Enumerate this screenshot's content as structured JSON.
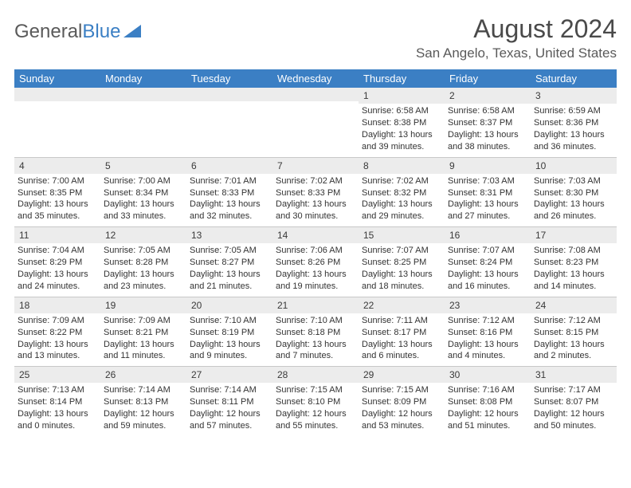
{
  "logo": {
    "text_gray": "General",
    "text_blue": "Blue"
  },
  "title": "August 2024",
  "location": "San Angelo, Texas, United States",
  "colors": {
    "header_bg": "#3b7fc4",
    "header_text": "#ffffff",
    "strip_bg": "#ececec",
    "row_border": "#c8c8c8",
    "body_text": "#333333",
    "title_text": "#4a4a4a",
    "location_text": "#5a5a5a"
  },
  "weekdays": [
    "Sunday",
    "Monday",
    "Tuesday",
    "Wednesday",
    "Thursday",
    "Friday",
    "Saturday"
  ],
  "first_weekday_index": 4,
  "days": [
    {
      "n": 1,
      "sunrise": "6:58 AM",
      "sunset": "8:38 PM",
      "daylight": "13 hours and 39 minutes."
    },
    {
      "n": 2,
      "sunrise": "6:58 AM",
      "sunset": "8:37 PM",
      "daylight": "13 hours and 38 minutes."
    },
    {
      "n": 3,
      "sunrise": "6:59 AM",
      "sunset": "8:36 PM",
      "daylight": "13 hours and 36 minutes."
    },
    {
      "n": 4,
      "sunrise": "7:00 AM",
      "sunset": "8:35 PM",
      "daylight": "13 hours and 35 minutes."
    },
    {
      "n": 5,
      "sunrise": "7:00 AM",
      "sunset": "8:34 PM",
      "daylight": "13 hours and 33 minutes."
    },
    {
      "n": 6,
      "sunrise": "7:01 AM",
      "sunset": "8:33 PM",
      "daylight": "13 hours and 32 minutes."
    },
    {
      "n": 7,
      "sunrise": "7:02 AM",
      "sunset": "8:33 PM",
      "daylight": "13 hours and 30 minutes."
    },
    {
      "n": 8,
      "sunrise": "7:02 AM",
      "sunset": "8:32 PM",
      "daylight": "13 hours and 29 minutes."
    },
    {
      "n": 9,
      "sunrise": "7:03 AM",
      "sunset": "8:31 PM",
      "daylight": "13 hours and 27 minutes."
    },
    {
      "n": 10,
      "sunrise": "7:03 AM",
      "sunset": "8:30 PM",
      "daylight": "13 hours and 26 minutes."
    },
    {
      "n": 11,
      "sunrise": "7:04 AM",
      "sunset": "8:29 PM",
      "daylight": "13 hours and 24 minutes."
    },
    {
      "n": 12,
      "sunrise": "7:05 AM",
      "sunset": "8:28 PM",
      "daylight": "13 hours and 23 minutes."
    },
    {
      "n": 13,
      "sunrise": "7:05 AM",
      "sunset": "8:27 PM",
      "daylight": "13 hours and 21 minutes."
    },
    {
      "n": 14,
      "sunrise": "7:06 AM",
      "sunset": "8:26 PM",
      "daylight": "13 hours and 19 minutes."
    },
    {
      "n": 15,
      "sunrise": "7:07 AM",
      "sunset": "8:25 PM",
      "daylight": "13 hours and 18 minutes."
    },
    {
      "n": 16,
      "sunrise": "7:07 AM",
      "sunset": "8:24 PM",
      "daylight": "13 hours and 16 minutes."
    },
    {
      "n": 17,
      "sunrise": "7:08 AM",
      "sunset": "8:23 PM",
      "daylight": "13 hours and 14 minutes."
    },
    {
      "n": 18,
      "sunrise": "7:09 AM",
      "sunset": "8:22 PM",
      "daylight": "13 hours and 13 minutes."
    },
    {
      "n": 19,
      "sunrise": "7:09 AM",
      "sunset": "8:21 PM",
      "daylight": "13 hours and 11 minutes."
    },
    {
      "n": 20,
      "sunrise": "7:10 AM",
      "sunset": "8:19 PM",
      "daylight": "13 hours and 9 minutes."
    },
    {
      "n": 21,
      "sunrise": "7:10 AM",
      "sunset": "8:18 PM",
      "daylight": "13 hours and 7 minutes."
    },
    {
      "n": 22,
      "sunrise": "7:11 AM",
      "sunset": "8:17 PM",
      "daylight": "13 hours and 6 minutes."
    },
    {
      "n": 23,
      "sunrise": "7:12 AM",
      "sunset": "8:16 PM",
      "daylight": "13 hours and 4 minutes."
    },
    {
      "n": 24,
      "sunrise": "7:12 AM",
      "sunset": "8:15 PM",
      "daylight": "13 hours and 2 minutes."
    },
    {
      "n": 25,
      "sunrise": "7:13 AM",
      "sunset": "8:14 PM",
      "daylight": "13 hours and 0 minutes."
    },
    {
      "n": 26,
      "sunrise": "7:14 AM",
      "sunset": "8:13 PM",
      "daylight": "12 hours and 59 minutes."
    },
    {
      "n": 27,
      "sunrise": "7:14 AM",
      "sunset": "8:11 PM",
      "daylight": "12 hours and 57 minutes."
    },
    {
      "n": 28,
      "sunrise": "7:15 AM",
      "sunset": "8:10 PM",
      "daylight": "12 hours and 55 minutes."
    },
    {
      "n": 29,
      "sunrise": "7:15 AM",
      "sunset": "8:09 PM",
      "daylight": "12 hours and 53 minutes."
    },
    {
      "n": 30,
      "sunrise": "7:16 AM",
      "sunset": "8:08 PM",
      "daylight": "12 hours and 51 minutes."
    },
    {
      "n": 31,
      "sunrise": "7:17 AM",
      "sunset": "8:07 PM",
      "daylight": "12 hours and 50 minutes."
    }
  ],
  "labels": {
    "sunrise_prefix": "Sunrise: ",
    "sunset_prefix": "Sunset: ",
    "daylight_prefix": "Daylight: "
  }
}
